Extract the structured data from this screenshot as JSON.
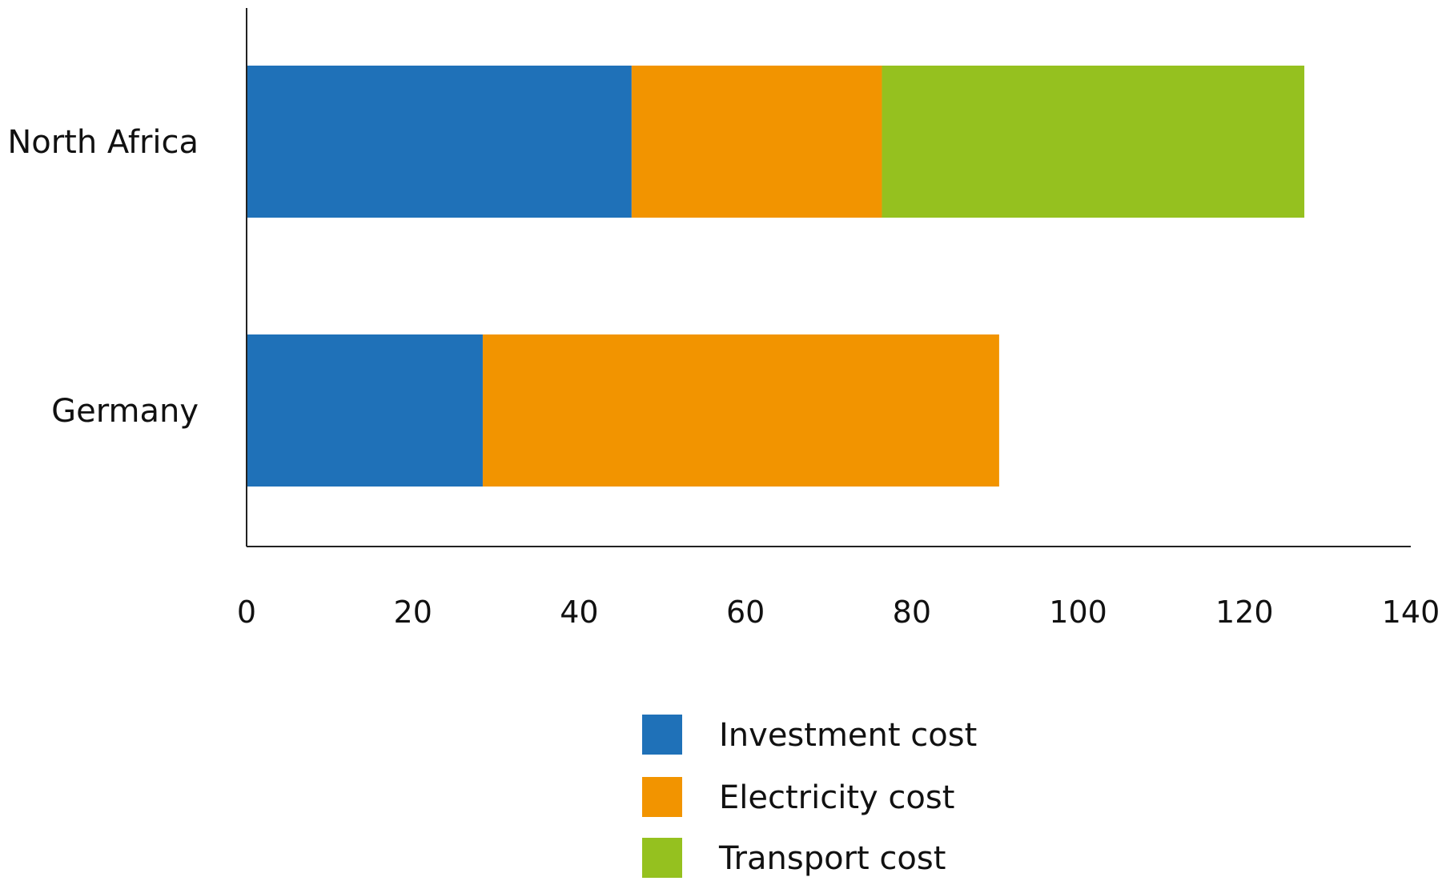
{
  "chart_data": {
    "type": "bar",
    "orientation": "horizontal",
    "stacked": true,
    "categories": [
      "North Africa",
      "Germany"
    ],
    "series": [
      {
        "name": "Investment cost",
        "color": "#1f71b8",
        "values": [
          46.3,
          28.4
        ]
      },
      {
        "name": "Electricity cost",
        "color": "#f29400",
        "values": [
          30.1,
          62.1
        ]
      },
      {
        "name": "Transport cost",
        "color": "#95c11f",
        "values": [
          50.8,
          0
        ]
      }
    ],
    "xlim": [
      0,
      140
    ],
    "x_ticks": [
      0,
      20,
      40,
      60,
      80,
      100,
      120,
      140
    ],
    "title": "",
    "xlabel": "",
    "ylabel": "",
    "grid": false,
    "legend_position": "bottom-center"
  }
}
